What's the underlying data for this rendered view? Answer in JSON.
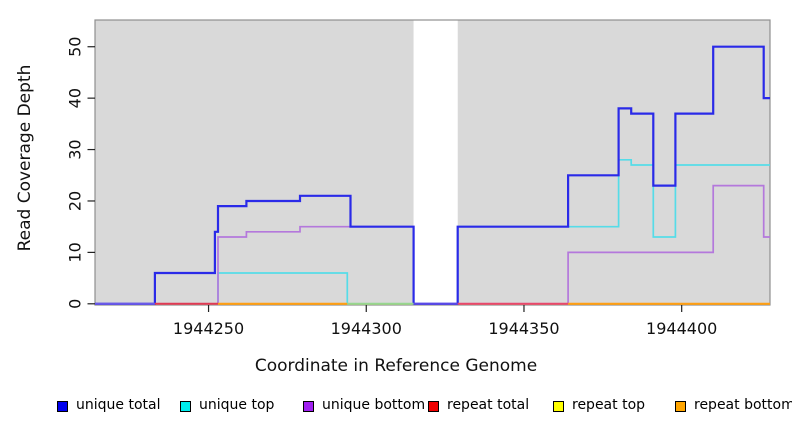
{
  "chart_data": {
    "type": "line",
    "subtype": "step-coverage",
    "title": "",
    "xlabel": "Coordinate in Reference Genome",
    "ylabel": "Read Coverage Depth",
    "xlim": [
      1944214,
      1944428
    ],
    "ylim": [
      0,
      55.2
    ],
    "x_ticks": [
      1944250,
      1944300,
      1944350,
      1944400
    ],
    "x_tick_labels": [
      "1944250",
      "1944300",
      "1944350",
      "1944400"
    ],
    "y_ticks": [
      0,
      10,
      20,
      30,
      40,
      50
    ],
    "y_tick_labels": [
      "0",
      "10",
      "20",
      "30",
      "40",
      "50"
    ],
    "grid": false,
    "plot_background": "#d9d9d9",
    "border_color": "#8f8f8f",
    "no_data_region": {
      "from": 1944315,
      "to": 1944329,
      "color": "#ffffff"
    },
    "series": [
      {
        "name": "repeat total",
        "line_color": "#e8415f",
        "legend_color": "#ee0000",
        "start_value": 0,
        "steps": []
      },
      {
        "name": "repeat top",
        "line_color": "#f5f500",
        "legend_color": "#ffff00",
        "start_value": 0,
        "steps": []
      },
      {
        "name": "repeat bottom",
        "line_color": "#ffa50a",
        "legend_color": "#ffa500",
        "start_value": 0,
        "steps": []
      },
      {
        "name": "unique top",
        "line_color": "#55dce8",
        "legend_color": "#00eeee",
        "start_value": 0,
        "steps": [
          [
            1944253,
            6
          ],
          [
            1944294,
            0
          ],
          [
            1944329,
            15
          ],
          [
            1944380,
            28
          ],
          [
            1944384,
            27
          ],
          [
            1944391,
            13
          ],
          [
            1944398,
            27
          ]
        ]
      },
      {
        "name": "unique bottom",
        "line_color": "#b478dc",
        "legend_color": "#a020f0",
        "start_value": 0,
        "steps": [
          [
            1944253,
            13
          ],
          [
            1944262,
            14
          ],
          [
            1944279,
            15
          ],
          [
            1944315,
            0
          ],
          [
            1944364,
            10
          ],
          [
            1944410,
            23
          ],
          [
            1944426,
            13
          ]
        ]
      },
      {
        "name": "unique total",
        "line_color": "#2a2ae8",
        "legend_color": "#0000ee",
        "start_value": 0,
        "steps": [
          [
            1944233,
            6
          ],
          [
            1944252,
            14
          ],
          [
            1944253,
            19
          ],
          [
            1944262,
            20
          ],
          [
            1944279,
            21
          ],
          [
            1944295,
            15
          ],
          [
            1944315,
            0
          ],
          [
            1944329,
            15
          ],
          [
            1944364,
            25
          ],
          [
            1944380,
            38
          ],
          [
            1944384,
            37
          ],
          [
            1944391,
            23
          ],
          [
            1944398,
            37
          ],
          [
            1944410,
            50
          ],
          [
            1944426,
            40
          ]
        ]
      }
    ],
    "baseline_segments": [
      {
        "from": 1944214,
        "to": 1944233,
        "color": "#6b5ae8"
      },
      {
        "from": 1944233,
        "to": 1944253,
        "color": "#e03a55"
      },
      {
        "from": 1944253,
        "to": 1944294,
        "color": "#ff9f14"
      },
      {
        "from": 1944294,
        "to": 1944315,
        "color": "#96d690"
      },
      {
        "from": 1944315,
        "to": 1944329,
        "color": "#5a49e6"
      },
      {
        "from": 1944329,
        "to": 1944364,
        "color": "#e8486d"
      },
      {
        "from": 1944364,
        "to": 1944428,
        "color": "#ff9f14"
      }
    ],
    "legend": {
      "position": "bottom",
      "entries": [
        {
          "label": "unique total",
          "color": "#0000ee"
        },
        {
          "label": "unique top",
          "color": "#00eeee"
        },
        {
          "label": "unique bottom",
          "color": "#a020f0"
        },
        {
          "label": "repeat total",
          "color": "#ee0000"
        },
        {
          "label": "repeat top",
          "color": "#ffff00"
        },
        {
          "label": "repeat bottom",
          "color": "#ffa500"
        }
      ]
    }
  }
}
